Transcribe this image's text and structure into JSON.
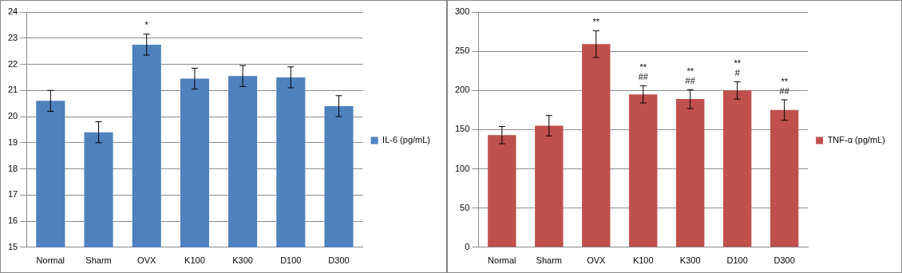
{
  "chart_data": [
    {
      "type": "bar",
      "categories": [
        "Normal",
        "Sharm",
        "OVX",
        "K100",
        "K300",
        "D100",
        "D300"
      ],
      "series": [
        {
          "name": "IL-6 (pg/mL)",
          "color": "#4f81bd",
          "values": [
            20.6,
            19.4,
            22.75,
            21.45,
            21.55,
            21.5,
            20.4
          ],
          "errors": [
            0.4,
            0.4,
            0.4,
            0.4,
            0.4,
            0.4,
            0.4
          ]
        }
      ],
      "annotations": [
        null,
        null,
        [
          "*"
        ],
        null,
        null,
        null,
        null
      ],
      "ylim": [
        15,
        24
      ],
      "yticks": [
        15,
        16,
        17,
        18,
        19,
        20,
        21,
        22,
        23,
        24
      ],
      "grid": true,
      "legend": "right"
    },
    {
      "type": "bar",
      "categories": [
        "Normal",
        "Sharm",
        "OVX",
        "K100",
        "K300",
        "D100",
        "D300"
      ],
      "series": [
        {
          "name": "TNF-α (pg/mL)",
          "color": "#c0504d",
          "values": [
            143,
            155,
            259,
            195,
            189,
            200,
            175
          ],
          "errors": [
            11,
            13,
            17,
            11,
            12,
            11,
            13
          ]
        }
      ],
      "annotations": [
        null,
        null,
        [
          "**"
        ],
        [
          "**",
          "##"
        ],
        [
          "**",
          "##"
        ],
        [
          "**",
          "#"
        ],
        [
          "**",
          "##"
        ]
      ],
      "ylim": [
        0,
        300
      ],
      "yticks": [
        0,
        50,
        100,
        150,
        200,
        250,
        300
      ],
      "grid": true,
      "legend": "right"
    }
  ]
}
